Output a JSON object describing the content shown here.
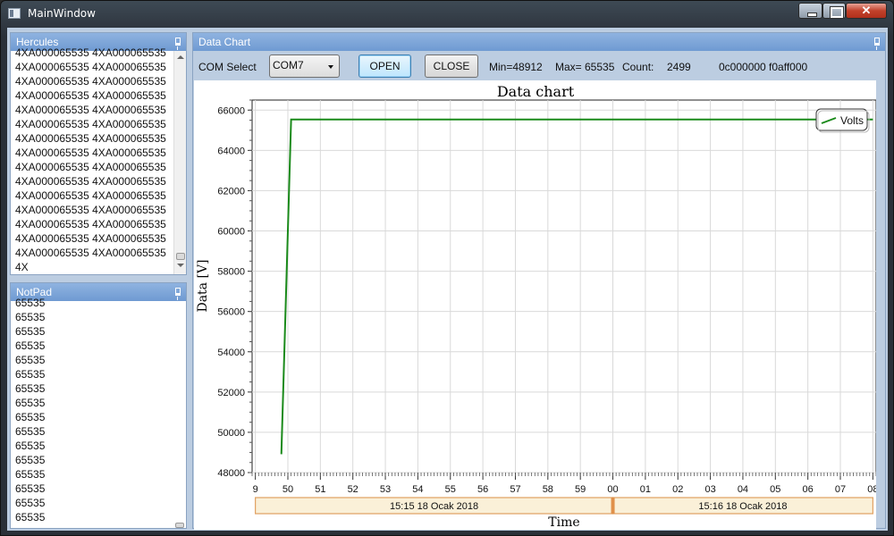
{
  "window": {
    "title": "MainWindow"
  },
  "hercules": {
    "title": "Hercules",
    "lines": [
      "4XA000065535 4XA000065535",
      "4XA000065535 4XA000065535",
      "4XA000065535 4XA000065535",
      "4XA000065535 4XA000065535",
      "4XA000065535 4XA000065535",
      "4XA000065535 4XA000065535",
      "4XA000065535 4XA000065535",
      "4XA000065535 4XA000065535",
      "4XA000065535 4XA000065535",
      "4XA000065535 4XA000065535",
      "4XA000065535 4XA000065535",
      "4XA000065535 4XA000065535",
      "4XA000065535 4XA000065535",
      "4XA000065535 4XA000065535",
      "4XA000065535 4XA000065535",
      "4X"
    ]
  },
  "notpad": {
    "title": "NotPad",
    "lines": [
      "65535",
      "65535",
      "65535",
      "65535",
      "65535",
      "65535",
      "65535",
      "65535",
      "65535",
      "65535",
      "65535",
      "65535",
      "65535",
      "65535",
      "65535",
      "65535"
    ]
  },
  "datachart": {
    "title": "Data Chart",
    "com_label": "COM Select",
    "com_value": "COM7",
    "open_label": "OPEN",
    "close_label": "CLOSE",
    "min_text": "Min=48912",
    "max_text": "Max=  65535",
    "count_label": "Count:",
    "count_value": "2499",
    "hex_text": "0c000000 f0aff000"
  },
  "chart_data": {
    "type": "line",
    "title": "Data chart",
    "xlabel": "Time",
    "ylabel": "Data [V]",
    "ylim": [
      48000,
      66500
    ],
    "yticks": [
      48000,
      50000,
      52000,
      54000,
      56000,
      58000,
      60000,
      62000,
      64000,
      66000
    ],
    "ytick_labels": [
      "48000",
      "50000",
      "52000",
      "54000",
      "56000",
      "58000",
      "60000",
      "62000",
      "64000",
      "66000"
    ],
    "xlim": [
      "15:15:49",
      "15:16:08"
    ],
    "xticks": [
      "15:15:49",
      "15:15:50",
      "15:15:51",
      "15:15:52",
      "15:15:53",
      "15:15:54",
      "15:15:55",
      "15:15:56",
      "15:15:57",
      "15:15:58",
      "15:15:59",
      "15:16:00",
      "15:16:01",
      "15:16:02",
      "15:16:03",
      "15:16:04",
      "15:16:05",
      "15:16:06",
      "15:16:07",
      "15:16:08"
    ],
    "xtick_labels": [
      "9",
      "50",
      "51",
      "52",
      "53",
      "54",
      "55",
      "56",
      "57",
      "58",
      "59",
      "00",
      "01",
      "02",
      "03",
      "04",
      "05",
      "06",
      "07",
      "08"
    ],
    "minute_bands": [
      {
        "label": "15:15 18 Ocak 2018",
        "from": "15:15:49",
        "to": "15:16:00"
      },
      {
        "label": "15:16 18 Ocak 2018",
        "from": "15:16:00",
        "to": "15:16:08"
      }
    ],
    "grid": true,
    "legend_position": "top-right",
    "series": [
      {
        "name": "Volts",
        "color": "#1a8a1a",
        "points": [
          {
            "x": "15:15:49.8",
            "y": 48912
          },
          {
            "x": "15:15:50.1",
            "y": 65535
          },
          {
            "x": "15:16:08",
            "y": 65535
          }
        ]
      }
    ]
  }
}
